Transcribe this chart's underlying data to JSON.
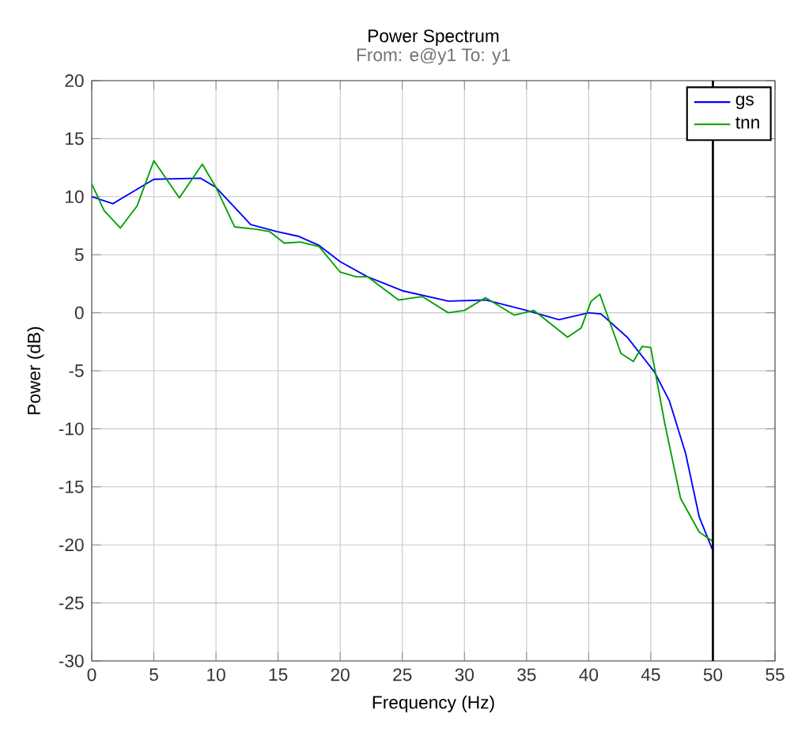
{
  "chart_data": {
    "type": "line",
    "title": "Power Spectrum",
    "subtitle": "From: e@y1  To: y1",
    "xlabel": "Frequency  (Hz)",
    "ylabel": "Power (dB)",
    "xlim": [
      0,
      55
    ],
    "ylim": [
      -30,
      20
    ],
    "xticks": [
      0,
      5,
      10,
      15,
      20,
      25,
      30,
      35,
      40,
      45,
      50,
      55
    ],
    "yticks": [
      -30,
      -25,
      -20,
      -15,
      -10,
      -5,
      0,
      5,
      10,
      15,
      20
    ],
    "grid": true,
    "legend": "top right",
    "marker": "none",
    "line_style": "solid",
    "ref_lines": [
      {
        "axis": "x",
        "value": 50,
        "color": "#000000"
      }
    ],
    "series": [
      {
        "name": "gs",
        "color": "#0000ff",
        "x": [
          0,
          1.7,
          5,
          8.75,
          10,
          12.8,
          14.9,
          16.6,
          18.3,
          20,
          22.2,
          25,
          28.7,
          31.7,
          35,
          37.6,
          40,
          41,
          43.1,
          45.3,
          46.5,
          47.8,
          48.9,
          50
        ],
        "values": [
          10,
          9.4,
          11.5,
          11.6,
          10.8,
          7.6,
          7.0,
          6.6,
          5.8,
          4.4,
          3.1,
          1.9,
          1.0,
          1.1,
          0.2,
          -0.6,
          0,
          -0.1,
          -2.1,
          -5.1,
          -7.6,
          -12.1,
          -17.6,
          -20.5
        ]
      },
      {
        "name": "tnn",
        "color": "#00a000",
        "x": [
          0,
          1,
          2.3,
          3.65,
          5,
          7.05,
          8.9,
          10,
          11.5,
          13.2,
          14.3,
          15.5,
          16.8,
          18.3,
          20,
          21.3,
          22.2,
          24.7,
          26.6,
          28.7,
          30,
          31.7,
          34,
          35.6,
          38.3,
          39.4,
          40.2,
          40.9,
          42.6,
          43.6,
          44.3,
          45,
          46.1,
          47.4,
          48.9,
          50
        ],
        "values": [
          11.1,
          8.8,
          7.3,
          9.2,
          13.1,
          9.9,
          12.8,
          10.8,
          7.4,
          7.2,
          7.0,
          6.0,
          6.1,
          5.7,
          3.5,
          3.1,
          3.1,
          1.1,
          1.4,
          0.0,
          0.2,
          1.3,
          -0.2,
          0.2,
          -2.1,
          -1.3,
          1.0,
          1.6,
          -3.5,
          -4.2,
          -2.9,
          -3.0,
          -9.4,
          -16.0,
          -18.9,
          -19.7
        ]
      }
    ]
  }
}
